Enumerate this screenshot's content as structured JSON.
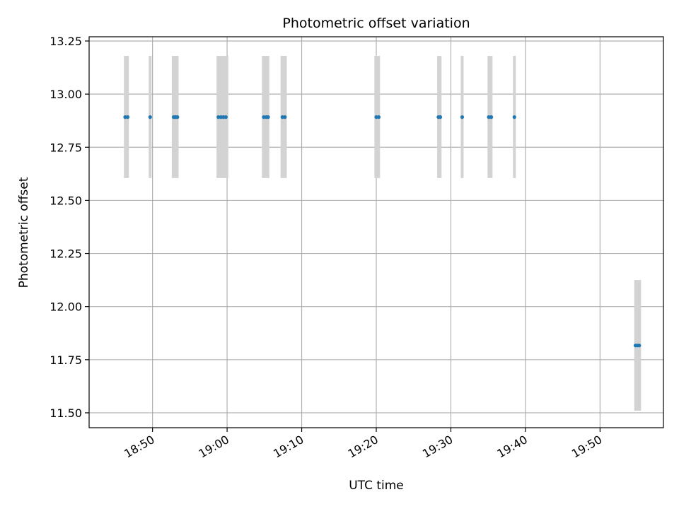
{
  "chart_data": {
    "type": "scatter",
    "title": "Photometric offset variation",
    "xlabel": "UTC time",
    "ylabel": "Photometric offset",
    "xlim": [
      "18:41:30",
      "19:58:30"
    ],
    "ylim": [
      11.43,
      13.27
    ],
    "x_ticks": [
      "18:50",
      "19:00",
      "19:10",
      "19:20",
      "19:30",
      "19:40",
      "19:50"
    ],
    "y_ticks": [
      "11.50",
      "11.75",
      "12.00",
      "12.25",
      "12.50",
      "12.75",
      "13.00",
      "13.25"
    ],
    "grid": true,
    "colors": {
      "points": "#1f77b4",
      "errorbars": "#d3d3d3",
      "grid": "#b0b0b0"
    },
    "errorbars": [
      {
        "x_start": "18:46:10",
        "x_end": "18:46:50",
        "y_low": 12.605,
        "y_high": 13.18
      },
      {
        "x_start": "18:49:30",
        "x_end": "18:49:52",
        "y_low": 12.605,
        "y_high": 13.18
      },
      {
        "x_start": "18:52:35",
        "x_end": "18:53:30",
        "y_low": 12.605,
        "y_high": 13.18
      },
      {
        "x_start": "18:58:35",
        "x_end": "19:00:10",
        "y_low": 12.605,
        "y_high": 13.18
      },
      {
        "x_start": "19:04:40",
        "x_end": "19:05:40",
        "y_low": 12.605,
        "y_high": 13.18
      },
      {
        "x_start": "19:07:10",
        "x_end": "19:08:00",
        "y_low": 12.605,
        "y_high": 13.18
      },
      {
        "x_start": "19:19:45",
        "x_end": "19:20:30",
        "y_low": 12.605,
        "y_high": 13.18
      },
      {
        "x_start": "19:28:10",
        "x_end": "19:28:45",
        "y_low": 12.605,
        "y_high": 13.18
      },
      {
        "x_start": "19:31:20",
        "x_end": "19:31:42",
        "y_low": 12.605,
        "y_high": 13.18
      },
      {
        "x_start": "19:34:55",
        "x_end": "19:35:35",
        "y_low": 12.605,
        "y_high": 13.18
      },
      {
        "x_start": "19:38:20",
        "x_end": "19:38:42",
        "y_low": 12.605,
        "y_high": 13.18
      },
      {
        "x_start": "19:54:35",
        "x_end": "19:55:30",
        "y_low": 11.51,
        "y_high": 12.125
      }
    ],
    "points": [
      {
        "x": "18:46:20",
        "y": 12.892
      },
      {
        "x": "18:46:40",
        "y": 12.892
      },
      {
        "x": "18:49:41",
        "y": 12.892
      },
      {
        "x": "18:52:50",
        "y": 12.892
      },
      {
        "x": "18:53:05",
        "y": 12.892
      },
      {
        "x": "18:53:20",
        "y": 12.892
      },
      {
        "x": "18:58:50",
        "y": 12.892
      },
      {
        "x": "18:59:10",
        "y": 12.892
      },
      {
        "x": "18:59:30",
        "y": 12.892
      },
      {
        "x": "18:59:50",
        "y": 12.892
      },
      {
        "x": "19:04:55",
        "y": 12.892
      },
      {
        "x": "19:05:15",
        "y": 12.892
      },
      {
        "x": "19:05:30",
        "y": 12.892
      },
      {
        "x": "19:07:25",
        "y": 12.892
      },
      {
        "x": "19:07:45",
        "y": 12.892
      },
      {
        "x": "19:20:00",
        "y": 12.892
      },
      {
        "x": "19:20:20",
        "y": 12.892
      },
      {
        "x": "19:28:20",
        "y": 12.892
      },
      {
        "x": "19:28:35",
        "y": 12.892
      },
      {
        "x": "19:31:31",
        "y": 12.892
      },
      {
        "x": "19:35:05",
        "y": 12.892
      },
      {
        "x": "19:35:25",
        "y": 12.892
      },
      {
        "x": "19:38:31",
        "y": 12.892
      },
      {
        "x": "19:54:45",
        "y": 11.817
      },
      {
        "x": "19:55:00",
        "y": 11.817
      },
      {
        "x": "19:55:15",
        "y": 11.817
      }
    ]
  }
}
